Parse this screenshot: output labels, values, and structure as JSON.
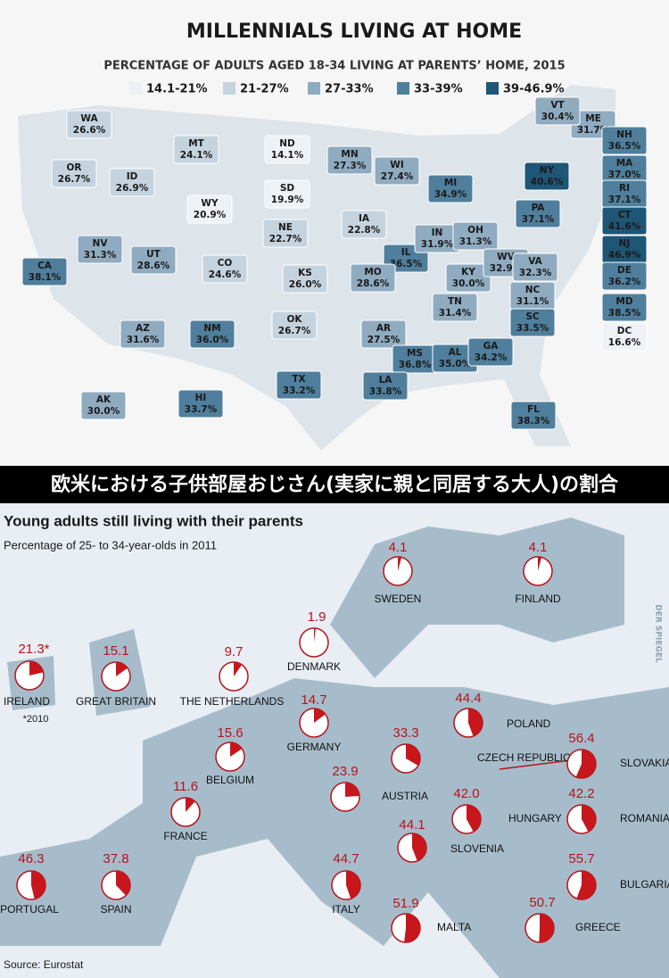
{
  "us_map": {
    "title": "MILLENNIALS LIVING AT HOME",
    "subtitle": "PERCENTAGE OF ADULTS AGED 18-34 LIVING AT PARENTS’ HOME, 2015",
    "legend": [
      {
        "label": "14.1-21%",
        "color": "#eef1f5"
      },
      {
        "label": "21-27%",
        "color": "#c5d3df"
      },
      {
        "label": "27-33%",
        "color": "#8fabc0"
      },
      {
        "label": "33-39%",
        "color": "#4f7f9c"
      },
      {
        "label": "39-46.9%",
        "color": "#1f5676"
      }
    ],
    "states": [
      {
        "abbr": "WA",
        "value": 26.6,
        "value_label": "26.6%",
        "color": "#c5d3df"
      },
      {
        "abbr": "MT",
        "value": 24.1,
        "value_label": "24.1%",
        "color": "#c5d3df"
      },
      {
        "abbr": "ND",
        "value": 14.1,
        "value_label": "14.1%",
        "color": "#eef1f5"
      },
      {
        "abbr": "MN",
        "value": 27.3,
        "value_label": "27.3%",
        "color": "#8fabc0"
      },
      {
        "abbr": "ME",
        "value": 31.7,
        "value_label": "31.7%",
        "color": "#8fabc0"
      },
      {
        "abbr": "VT",
        "value": 30.4,
        "value_label": "30.4%",
        "color": "#8fabc0"
      },
      {
        "abbr": "NH",
        "value": 36.5,
        "value_label": "36.5%",
        "color": "#4f7f9c"
      },
      {
        "abbr": "MA",
        "value": 37.0,
        "value_label": "37.0%",
        "color": "#4f7f9c"
      },
      {
        "abbr": "RI",
        "value": 37.1,
        "value_label": "37.1%",
        "color": "#4f7f9c"
      },
      {
        "abbr": "CT",
        "value": 41.6,
        "value_label": "41.6%",
        "color": "#1f5676"
      },
      {
        "abbr": "NJ",
        "value": 46.9,
        "value_label": "46.9%",
        "color": "#1f5676"
      },
      {
        "abbr": "DE",
        "value": 36.2,
        "value_label": "36.2%",
        "color": "#4f7f9c"
      },
      {
        "abbr": "MD",
        "value": 38.5,
        "value_label": "38.5%",
        "color": "#4f7f9c"
      },
      {
        "abbr": "DC",
        "value": 16.6,
        "value_label": "16.6%",
        "color": "#eef1f5"
      },
      {
        "abbr": "NY",
        "value": 40.6,
        "value_label": "40.6%",
        "color": "#1f5676"
      },
      {
        "abbr": "OR",
        "value": 26.7,
        "value_label": "26.7%",
        "color": "#c5d3df"
      },
      {
        "abbr": "ID",
        "value": 26.9,
        "value_label": "26.9%",
        "color": "#c5d3df"
      },
      {
        "abbr": "WY",
        "value": 20.9,
        "value_label": "20.9%",
        "color": "#eef1f5"
      },
      {
        "abbr": "SD",
        "value": 19.9,
        "value_label": "19.9%",
        "color": "#eef1f5"
      },
      {
        "abbr": "WI",
        "value": 27.4,
        "value_label": "27.4%",
        "color": "#8fabc0"
      },
      {
        "abbr": "MI",
        "value": 34.9,
        "value_label": "34.9%",
        "color": "#4f7f9c"
      },
      {
        "abbr": "IA",
        "value": 22.8,
        "value_label": "22.8%",
        "color": "#c5d3df"
      },
      {
        "abbr": "NE",
        "value": 22.7,
        "value_label": "22.7%",
        "color": "#c5d3df"
      },
      {
        "abbr": "IL",
        "value": 36.5,
        "value_label": "36.5%",
        "color": "#4f7f9c"
      },
      {
        "abbr": "IN",
        "value": 31.9,
        "value_label": "31.9%",
        "color": "#8fabc0"
      },
      {
        "abbr": "OH",
        "value": 31.3,
        "value_label": "31.3%",
        "color": "#8fabc0"
      },
      {
        "abbr": "PA",
        "value": 37.1,
        "value_label": "37.1%",
        "color": "#4f7f9c"
      },
      {
        "abbr": "NV",
        "value": 31.3,
        "value_label": "31.3%",
        "color": "#8fabc0"
      },
      {
        "abbr": "UT",
        "value": 28.6,
        "value_label": "28.6%",
        "color": "#8fabc0"
      },
      {
        "abbr": "CO",
        "value": 24.6,
        "value_label": "24.6%",
        "color": "#c5d3df"
      },
      {
        "abbr": "KS",
        "value": 26.0,
        "value_label": "26.0%",
        "color": "#c5d3df"
      },
      {
        "abbr": "MO",
        "value": 28.6,
        "value_label": "28.6%",
        "color": "#8fabc0"
      },
      {
        "abbr": "KY",
        "value": 30.0,
        "value_label": "30.0%",
        "color": "#8fabc0"
      },
      {
        "abbr": "WV",
        "value": 32.9,
        "value_label": "32.9%",
        "color": "#8fabc0"
      },
      {
        "abbr": "VA",
        "value": 32.3,
        "value_label": "32.3%",
        "color": "#8fabc0"
      },
      {
        "abbr": "CA",
        "value": 38.1,
        "value_label": "38.1%",
        "color": "#4f7f9c"
      },
      {
        "abbr": "NC",
        "value": 31.1,
        "value_label": "31.1%",
        "color": "#8fabc0"
      },
      {
        "abbr": "TN",
        "value": 31.4,
        "value_label": "31.4%",
        "color": "#8fabc0"
      },
      {
        "abbr": "OK",
        "value": 26.7,
        "value_label": "26.7%",
        "color": "#c5d3df"
      },
      {
        "abbr": "AR",
        "value": 27.5,
        "value_label": "27.5%",
        "color": "#8fabc0"
      },
      {
        "abbr": "SC",
        "value": 33.5,
        "value_label": "33.5%",
        "color": "#4f7f9c"
      },
      {
        "abbr": "AZ",
        "value": 31.6,
        "value_label": "31.6%",
        "color": "#8fabc0"
      },
      {
        "abbr": "NM",
        "value": 36.0,
        "value_label": "36.0%",
        "color": "#4f7f9c"
      },
      {
        "abbr": "MS",
        "value": 36.8,
        "value_label": "36.8%",
        "color": "#4f7f9c"
      },
      {
        "abbr": "AL",
        "value": 35.0,
        "value_label": "35.0%",
        "color": "#4f7f9c"
      },
      {
        "abbr": "GA",
        "value": 34.2,
        "value_label": "34.2%",
        "color": "#4f7f9c"
      },
      {
        "abbr": "TX",
        "value": 33.2,
        "value_label": "33.2%",
        "color": "#4f7f9c"
      },
      {
        "abbr": "LA",
        "value": 33.8,
        "value_label": "33.8%",
        "color": "#4f7f9c"
      },
      {
        "abbr": "FL",
        "value": 38.3,
        "value_label": "38.3%",
        "color": "#4f7f9c"
      },
      {
        "abbr": "AK",
        "value": 30.0,
        "value_label": "30.0%",
        "color": "#8fabc0"
      },
      {
        "abbr": "HI",
        "value": 33.7,
        "value_label": "33.7%",
        "color": "#4f7f9c"
      }
    ]
  },
  "banner": "欧米における子供部屋おじさん(実家に親と同居する大人)の割合",
  "europe_map": {
    "title": "Young adults still living with their parents",
    "subtitle": "Percentage of 25- to 34-year-olds in 2011",
    "countries": [
      {
        "name": "SWEDEN",
        "value": 4.1
      },
      {
        "name": "FINLAND",
        "value": 4.1
      },
      {
        "name": "DENMARK",
        "value": 1.9
      },
      {
        "name": "IRELAND",
        "value": 21.3,
        "value_label": "21.3*"
      },
      {
        "name": "GREAT BRITAIN",
        "value": 15.1
      },
      {
        "name": "THE NETHERLANDS",
        "value": 9.7
      },
      {
        "name": "GERMANY",
        "value": 14.7
      },
      {
        "name": "POLAND",
        "value": 44.4
      },
      {
        "name": "BELGIUM",
        "value": 15.6
      },
      {
        "name": "CZECH REPUBLIC",
        "value": 33.3
      },
      {
        "name": "SLOVAKIA",
        "value": 56.4
      },
      {
        "name": "FRANCE",
        "value": 11.6
      },
      {
        "name": "AUSTRIA",
        "value": 23.9
      },
      {
        "name": "HUNGARY",
        "value": 42.0,
        "value_label": "42.0"
      },
      {
        "name": "ROMANIA",
        "value": 42.2
      },
      {
        "name": "SLOVENIA",
        "value": 44.1
      },
      {
        "name": "PORTUGAL",
        "value": 46.3
      },
      {
        "name": "SPAIN",
        "value": 37.8
      },
      {
        "name": "ITALY",
        "value": 44.7
      },
      {
        "name": "BULGARIA",
        "value": 55.7
      },
      {
        "name": "MALTA",
        "value": 51.9
      },
      {
        "name": "GREECE",
        "value": 50.7
      }
    ],
    "note": "*2010",
    "credit": "DER SPIEGEL",
    "source": "Source: Eurostat"
  }
}
